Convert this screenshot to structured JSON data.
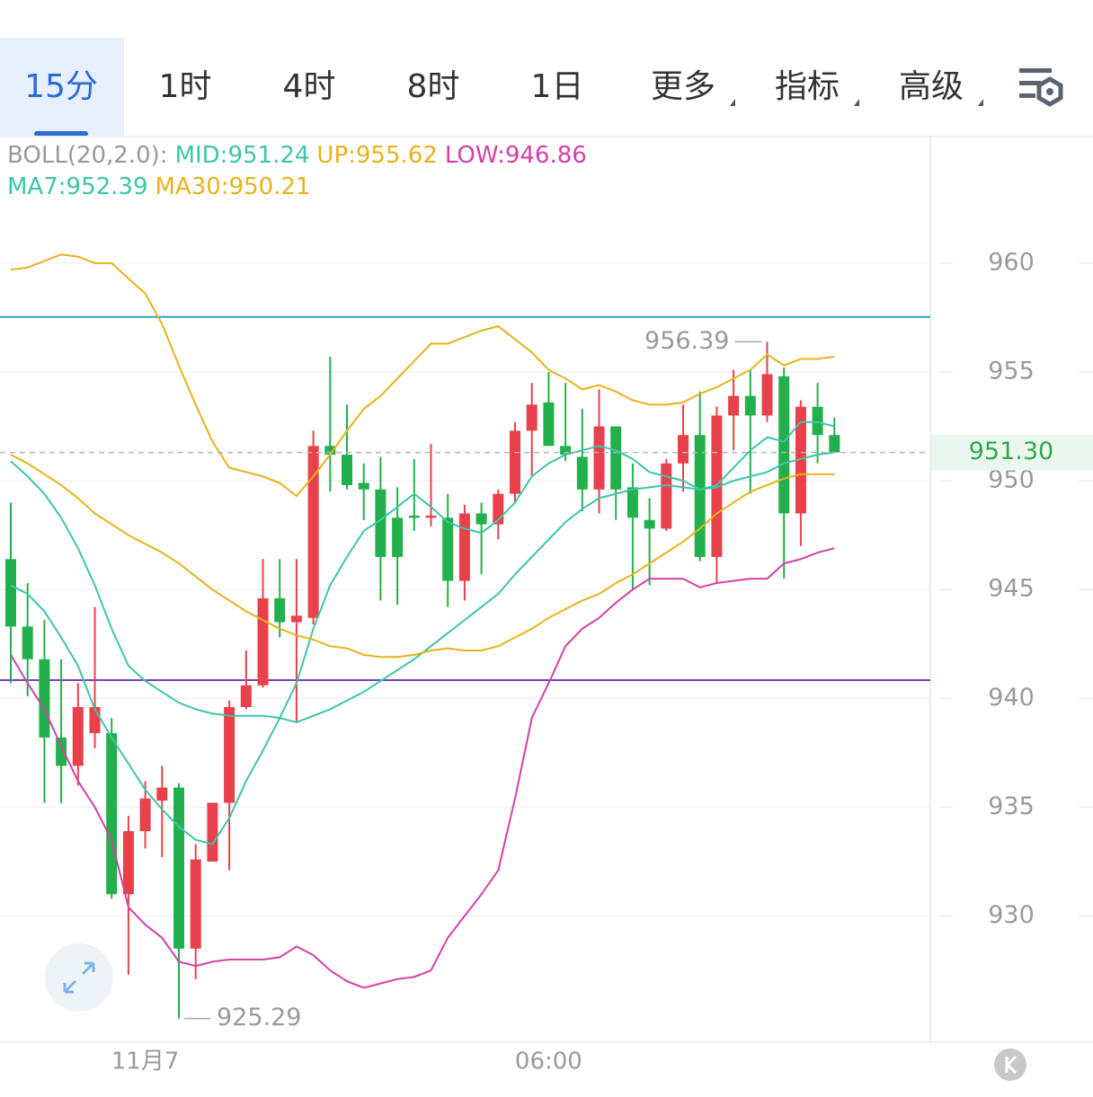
{
  "tabs": [
    "15分",
    "1时",
    "4时",
    "8时",
    "1日",
    "更多",
    "指标",
    "高级"
  ],
  "active_tab": 0,
  "chart_data": {
    "type": "candlestick",
    "indicator_prefix": "BOLL(20,2.0):",
    "categories": [
      null,
      null,
      null,
      null,
      null,
      null,
      null,
      null,
      "11月7",
      null,
      null,
      null,
      null,
      null,
      null,
      null,
      null,
      null,
      null,
      null,
      null,
      null,
      null,
      null,
      null,
      null,
      null,
      null,
      null,
      null,
      null,
      null,
      "06:00",
      null,
      null,
      null,
      null,
      null,
      null,
      null,
      null,
      null,
      null,
      null,
      null,
      null,
      null,
      null,
      null,
      null
    ],
    "open": [
      946.4,
      943.3,
      941.8,
      938.2,
      936.9,
      938.4,
      938.4,
      931.0,
      933.9,
      935.3,
      935.9,
      928.5,
      932.5,
      935.2,
      939.6,
      940.6,
      944.6,
      943.5,
      943.7,
      951.6,
      951.2,
      949.9,
      949.6,
      948.3,
      948.4,
      948.3,
      948.3,
      945.4,
      948.5,
      948.0,
      949.4,
      952.3,
      953.6,
      951.6,
      951.1,
      949.6,
      952.5,
      949.7,
      948.2,
      947.8,
      950.8,
      952.1,
      946.5,
      953.0,
      953.9,
      953.0,
      954.8,
      948.5,
      953.4,
      952.1
    ],
    "high": [
      949.0,
      945.3,
      943.6,
      941.8,
      940.7,
      944.2,
      939.1,
      934.6,
      936.2,
      936.9,
      936.1,
      933.3,
      935.2,
      939.9,
      942.2,
      946.4,
      946.4,
      946.4,
      952.3,
      955.7,
      953.5,
      950.8,
      951.1,
      949.7,
      951.0,
      951.7,
      949.4,
      948.9,
      949.0,
      949.6,
      952.7,
      954.5,
      955.0,
      954.5,
      953.3,
      954.2,
      952.5,
      950.8,
      949.2,
      951.0,
      953.5,
      954.1,
      953.4,
      955.1,
      955.1,
      956.39,
      955.2,
      953.7,
      954.5,
      952.9
    ],
    "low": [
      940.7,
      940.1,
      935.2,
      935.2,
      936.0,
      937.7,
      930.8,
      927.3,
      933.1,
      932.7,
      925.29,
      927.1,
      932.5,
      932.1,
      939.5,
      940.5,
      942.8,
      938.9,
      943.4,
      949.5,
      949.6,
      948.2,
      944.5,
      944.3,
      947.7,
      947.9,
      944.2,
      944.5,
      945.7,
      947.3,
      949.0,
      950.2,
      951.6,
      950.9,
      948.6,
      948.5,
      948.2,
      945.0,
      945.2,
      947.7,
      949.5,
      946.3,
      945.3,
      951.4,
      949.4,
      952.7,
      945.5,
      947.0,
      950.8,
      951.3
    ],
    "close": [
      943.3,
      941.8,
      938.2,
      936.9,
      939.6,
      939.6,
      931.0,
      933.9,
      935.4,
      935.9,
      928.5,
      932.6,
      935.2,
      939.6,
      940.6,
      944.6,
      943.5,
      943.8,
      951.6,
      951.2,
      949.8,
      949.6,
      946.5,
      946.5,
      948.3,
      948.4,
      945.4,
      948.5,
      948.0,
      949.4,
      952.3,
      953.5,
      951.6,
      951.2,
      949.6,
      952.5,
      949.6,
      948.3,
      947.8,
      950.8,
      952.1,
      946.5,
      953.0,
      953.9,
      953.0,
      954.9,
      948.5,
      953.4,
      952.1,
      951.3
    ],
    "up_color": "#e8414b",
    "down_color": "#23b04c",
    "series": [
      {
        "label": "MID:951.24",
        "color": "#3cc6a8",
        "values": [
          950.9,
          950.2,
          949.4,
          948.3,
          946.9,
          945.2,
          943.2,
          941.5,
          940.8,
          940.3,
          939.8,
          939.5,
          939.3,
          939.2,
          939.2,
          939.2,
          939.1,
          938.9,
          939.2,
          939.5,
          939.9,
          940.3,
          940.8,
          941.3,
          941.8,
          942.4,
          943.0,
          943.6,
          944.2,
          944.8,
          945.7,
          946.5,
          947.3,
          948.1,
          948.7,
          949.2,
          949.4,
          949.6,
          949.7,
          949.8,
          949.7,
          949.6,
          949.7,
          950.0,
          950.2,
          950.4,
          950.8,
          951.0,
          951.2,
          951.3
        ]
      },
      {
        "label": "UP:955.62",
        "color": "#e8b21a",
        "values": [
          959.7,
          959.8,
          960.1,
          960.4,
          960.3,
          960.0,
          960.0,
          959.3,
          958.6,
          957.2,
          955.3,
          953.5,
          951.8,
          950.6,
          950.4,
          950.2,
          949.9,
          949.3,
          950.2,
          951.2,
          952.3,
          953.3,
          953.9,
          954.7,
          955.5,
          956.3,
          956.3,
          956.6,
          956.9,
          957.1,
          956.5,
          955.9,
          955.1,
          954.7,
          954.2,
          954.4,
          954.1,
          953.7,
          953.5,
          953.5,
          953.6,
          954.0,
          954.3,
          954.7,
          955.1,
          955.8,
          955.3,
          955.6,
          955.6,
          955.7
        ]
      },
      {
        "label": "LOW:946.86",
        "color": "#d63fa8",
        "values": [
          942.0,
          940.7,
          939.5,
          937.8,
          936.2,
          935.0,
          933.5,
          930.4,
          929.6,
          929.0,
          927.9,
          927.7,
          927.9,
          928.0,
          928.0,
          928.0,
          928.1,
          928.6,
          928.2,
          927.5,
          927.0,
          926.7,
          926.9,
          927.1,
          927.2,
          927.5,
          929.0,
          930.0,
          931.0,
          932.1,
          935.4,
          939.1,
          940.7,
          942.4,
          943.2,
          943.7,
          944.4,
          945.0,
          945.5,
          945.5,
          945.5,
          945.1,
          945.3,
          945.4,
          945.5,
          945.5,
          946.2,
          946.4,
          946.7,
          946.9
        ]
      },
      {
        "label": "MA7:952.39",
        "color": "#3cc6a8",
        "values": [
          945.2,
          944.8,
          944.0,
          942.8,
          941.5,
          939.5,
          938.2,
          937.0,
          935.8,
          934.9,
          934.1,
          933.5,
          933.3,
          934.5,
          936.2,
          937.6,
          939.1,
          940.7,
          943.2,
          945.2,
          946.5,
          947.7,
          948.2,
          948.8,
          949.4,
          948.8,
          948.1,
          947.8,
          947.6,
          948.2,
          949.0,
          950.2,
          950.8,
          951.2,
          951.4,
          951.6,
          951.4,
          951.0,
          950.4,
          950.2,
          950.0,
          949.6,
          949.8,
          950.6,
          951.4,
          952.0,
          951.8,
          952.7,
          952.7,
          952.5
        ]
      },
      {
        "label": "MA30:950.21",
        "color": "#e8b21a",
        "values": [
          951.2,
          950.8,
          950.3,
          949.8,
          949.2,
          948.5,
          948.0,
          947.5,
          947.1,
          946.7,
          946.2,
          945.6,
          945.0,
          944.5,
          944.0,
          943.6,
          943.2,
          942.9,
          942.7,
          942.4,
          942.3,
          942.0,
          941.9,
          941.9,
          942.0,
          942.2,
          942.3,
          942.2,
          942.2,
          942.4,
          942.8,
          943.2,
          943.7,
          944.1,
          944.5,
          944.8,
          945.3,
          945.7,
          946.2,
          946.7,
          947.2,
          947.8,
          948.5,
          949.0,
          949.5,
          949.8,
          950.1,
          950.3,
          950.3,
          950.3
        ]
      }
    ],
    "hlines": [
      {
        "value": 957.53,
        "color": "#2a9fd6"
      },
      {
        "value": 940.84,
        "color": "#7b3fb8"
      }
    ],
    "last_price": {
      "value": 951.3,
      "label": "951.30"
    },
    "ylim": [
      924.2,
      965.9
    ],
    "yticks": [
      930,
      935,
      940,
      945,
      950,
      955,
      960
    ],
    "grid": true
  }
}
